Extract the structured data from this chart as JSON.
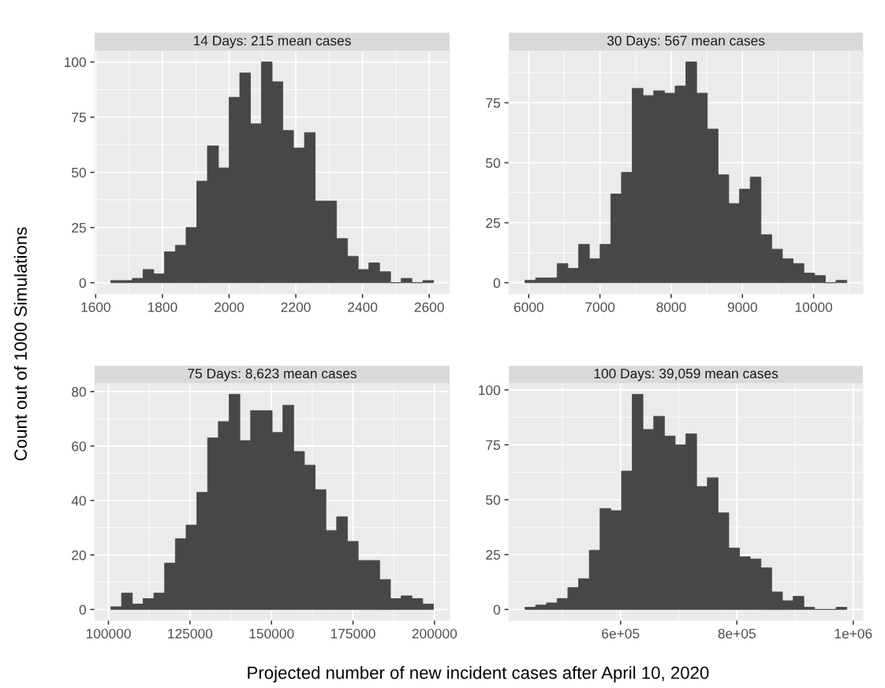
{
  "chart_data": [
    {
      "type": "histogram",
      "title": "14 Days: 215 mean cases",
      "ylabel": "Count out of 1000 Simulations",
      "xlabel": "Projected number of new incident cases after April 10, 2020",
      "color": "#474747",
      "grid": true,
      "bins": [
        1645,
        1677,
        1710,
        1742,
        1774,
        1806,
        1839,
        1871,
        1903,
        1935,
        1968,
        2000,
        2032,
        2064,
        2097,
        2129,
        2161,
        2193,
        2226,
        2258,
        2290,
        2322,
        2355,
        2387,
        2419,
        2451,
        2484,
        2516,
        2548,
        2581,
        2613
      ],
      "values": [
        1,
        1,
        2,
        6,
        4,
        14,
        17,
        25,
        46,
        62,
        52,
        84,
        95,
        72,
        100,
        91,
        69,
        61,
        68,
        37,
        37,
        20,
        12,
        6,
        9,
        5,
        0,
        2,
        0,
        1
      ],
      "xlim": [
        1597,
        2661
      ],
      "ylim": [
        -5,
        105
      ],
      "xticks": [
        1600,
        1800,
        2000,
        2200,
        2400,
        2600
      ],
      "yticks": [
        0,
        25,
        50,
        75,
        100
      ]
    },
    {
      "type": "histogram",
      "title": "30 Days: 567 mean cases",
      "color": "#474747",
      "grid": true,
      "bins": [
        5947,
        6098,
        6248,
        6399,
        6549,
        6700,
        6851,
        7001,
        7152,
        7302,
        7453,
        7604,
        7754,
        7905,
        8055,
        8206,
        8357,
        8507,
        8658,
        8808,
        8959,
        9110,
        9260,
        9411,
        9561,
        9712,
        9863,
        10013,
        10164,
        10314,
        10465
      ],
      "values": [
        1,
        2,
        2,
        8,
        6,
        16,
        10,
        16,
        37,
        46,
        81,
        78,
        80,
        79,
        82,
        92,
        79,
        64,
        45,
        33,
        39,
        44,
        20,
        14,
        10,
        8,
        4,
        3,
        0,
        1
      ],
      "xlim": [
        5721,
        10691
      ],
      "ylim": [
        -4.6,
        96.6
      ],
      "xticks": [
        6000,
        7000,
        8000,
        9000,
        10000
      ],
      "yticks": [
        0,
        25,
        50,
        75
      ]
    },
    {
      "type": "histogram",
      "title": "75 Days: 8,623 mean cases",
      "color": "#474747",
      "grid": true,
      "bins": [
        100723,
        104022,
        107320,
        110619,
        113917,
        117216,
        120514,
        123813,
        127111,
        130410,
        133708,
        137007,
        140305,
        143604,
        146902,
        150201,
        153499,
        156798,
        160096,
        163395,
        166693,
        169992,
        173290,
        176589,
        179887,
        183186,
        186484,
        189783,
        193081,
        196380,
        199678
      ],
      "values": [
        1,
        6,
        2,
        4,
        6,
        17,
        26,
        31,
        43,
        63,
        69,
        79,
        62,
        73,
        73,
        65,
        75,
        58,
        53,
        44,
        29,
        34,
        25,
        18,
        18,
        11,
        4,
        5,
        4,
        2
      ],
      "xlim": [
        95775,
        204626
      ],
      "ylim": [
        -3.95,
        82.95
      ],
      "xticks": [
        100000,
        125000,
        150000,
        175000,
        200000
      ],
      "yticks": [
        0,
        20,
        40,
        60,
        80
      ]
    },
    {
      "type": "histogram",
      "title": "100 Days: 39,059 mean cases",
      "color": "#474747",
      "grid": true,
      "bins": [
        435731,
        454169,
        472607,
        491045,
        509483,
        527921,
        546359,
        564797,
        583235,
        601673,
        620111,
        638549,
        656987,
        675425,
        693863,
        712301,
        730739,
        749177,
        767615,
        786053,
        804491,
        822929,
        841367,
        859805,
        878243,
        896681,
        915119,
        933557,
        951995,
        970433,
        988871
      ],
      "values": [
        1,
        2,
        3,
        5,
        10,
        14,
        27,
        46,
        45,
        63,
        98,
        82,
        88,
        79,
        75,
        80,
        56,
        60,
        44,
        28,
        24,
        23,
        19,
        8,
        4,
        6,
        1,
        0,
        0,
        1
      ],
      "xlim": [
        408074,
        1016528
      ],
      "ylim": [
        -4.9,
        102.9
      ],
      "xticks": [
        {
          "value": 600000,
          "label": "6e+05"
        },
        {
          "value": 800000,
          "label": "8e+05"
        },
        {
          "value": 1000000,
          "label": "1e+06"
        }
      ],
      "yticks": [
        0,
        25,
        50,
        75,
        100
      ]
    }
  ]
}
